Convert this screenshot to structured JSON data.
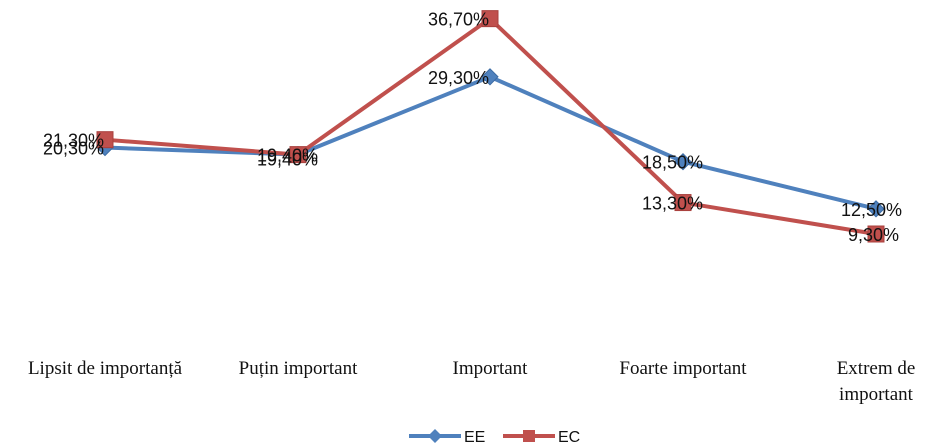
{
  "chart_data": {
    "type": "line",
    "title": "",
    "xlabel": "",
    "ylabel": "",
    "ylim": [
      0,
      40
    ],
    "grid": false,
    "legend_position": "bottom",
    "categories": [
      [
        "Lipsit de importanță"
      ],
      [
        "Puțin important"
      ],
      [
        "Important"
      ],
      [
        "Foarte important"
      ],
      [
        "Extrem de",
        "important"
      ]
    ],
    "series": [
      {
        "name": "EE",
        "color": "#4F81BD",
        "marker": "diamond",
        "values": [
          20.3,
          19.4,
          29.3,
          18.5,
          12.5
        ],
        "labels": [
          "20,30%",
          "19,40%",
          "29,30%",
          "18,50%",
          "12,50%"
        ]
      },
      {
        "name": "EC",
        "color": "#C0504D",
        "marker": "square",
        "values": [
          21.3,
          19.4,
          36.7,
          13.3,
          9.3
        ],
        "labels": [
          "21,30%",
          "19,40%",
          "36,70%",
          "13,30%",
          "9,30%"
        ]
      }
    ]
  }
}
